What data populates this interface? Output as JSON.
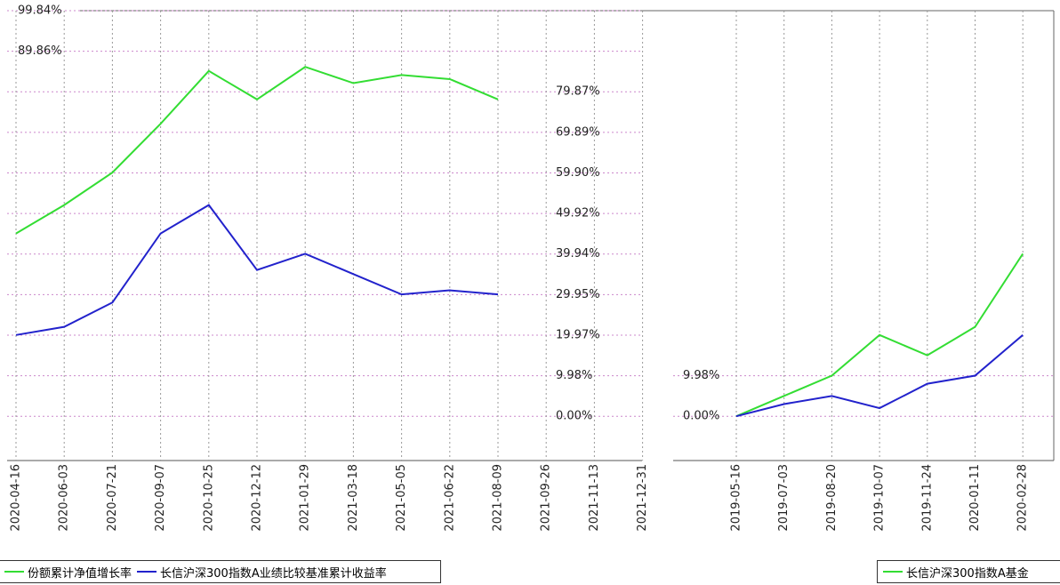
{
  "chart_data": [
    {
      "type": "line",
      "x": [
        "2020-04-16",
        "2020-06-03",
        "2020-07-21",
        "2020-09-07",
        "2020-10-25",
        "2020-12-12",
        "2021-01-29",
        "2021-03-18",
        "2021-05-05",
        "2021-06-22",
        "2021-08-09",
        "2021-09-26",
        "2021-11-13",
        "2021-12-31"
      ],
      "series": [
        {
          "name": "份额累计净值增长率",
          "color": "#33dd33",
          "values": [
            45,
            52,
            60,
            72,
            85,
            78,
            86,
            82,
            84,
            83,
            78,
            null,
            null,
            null
          ]
        },
        {
          "name": "长信沪深300指数A业绩比较基准累计收益率",
          "color": "#2222cc",
          "values": [
            20,
            22,
            28,
            45,
            52,
            36,
            40,
            35,
            30,
            31,
            30,
            null,
            null,
            null
          ]
        }
      ],
      "ylim": [
        -10.9,
        99.84
      ],
      "yticks": [
        {
          "value": 0,
          "label": "0.00%"
        },
        {
          "value": 9.98,
          "label": "9.98%"
        },
        {
          "value": 19.97,
          "label": "19.97%"
        },
        {
          "value": 29.95,
          "label": "29.95%"
        },
        {
          "value": 39.94,
          "label": "39.94%"
        },
        {
          "value": 49.92,
          "label": "49.92%"
        },
        {
          "value": 59.9,
          "label": "59.90%"
        },
        {
          "value": 69.89,
          "label": "69.89%"
        },
        {
          "value": 79.87,
          "label": "79.87%"
        },
        {
          "value": 89.86,
          "label": "89.86%"
        },
        {
          "value": 99.84,
          "label": "99.84%"
        }
      ],
      "grid": true
    },
    {
      "type": "line",
      "x": [
        "2019-05-16",
        "2019-07-03",
        "2019-08-20",
        "2019-10-07",
        "2019-11-24",
        "2020-01-11",
        "2020-02-28"
      ],
      "series": [
        {
          "name": "长信沪深300指数A基金",
          "color": "#33dd33",
          "values": [
            0,
            5,
            10,
            20,
            15,
            22,
            40
          ]
        },
        {
          "color": "#2222cc",
          "values": [
            0,
            3,
            5,
            2,
            8,
            10,
            20
          ]
        }
      ],
      "ylim": [
        -10.9,
        99.84
      ],
      "yticks": [
        {
          "value": 0,
          "label": "0.00%"
        },
        {
          "value": 9.98,
          "label": "9.98%"
        }
      ],
      "grid": true
    }
  ]
}
